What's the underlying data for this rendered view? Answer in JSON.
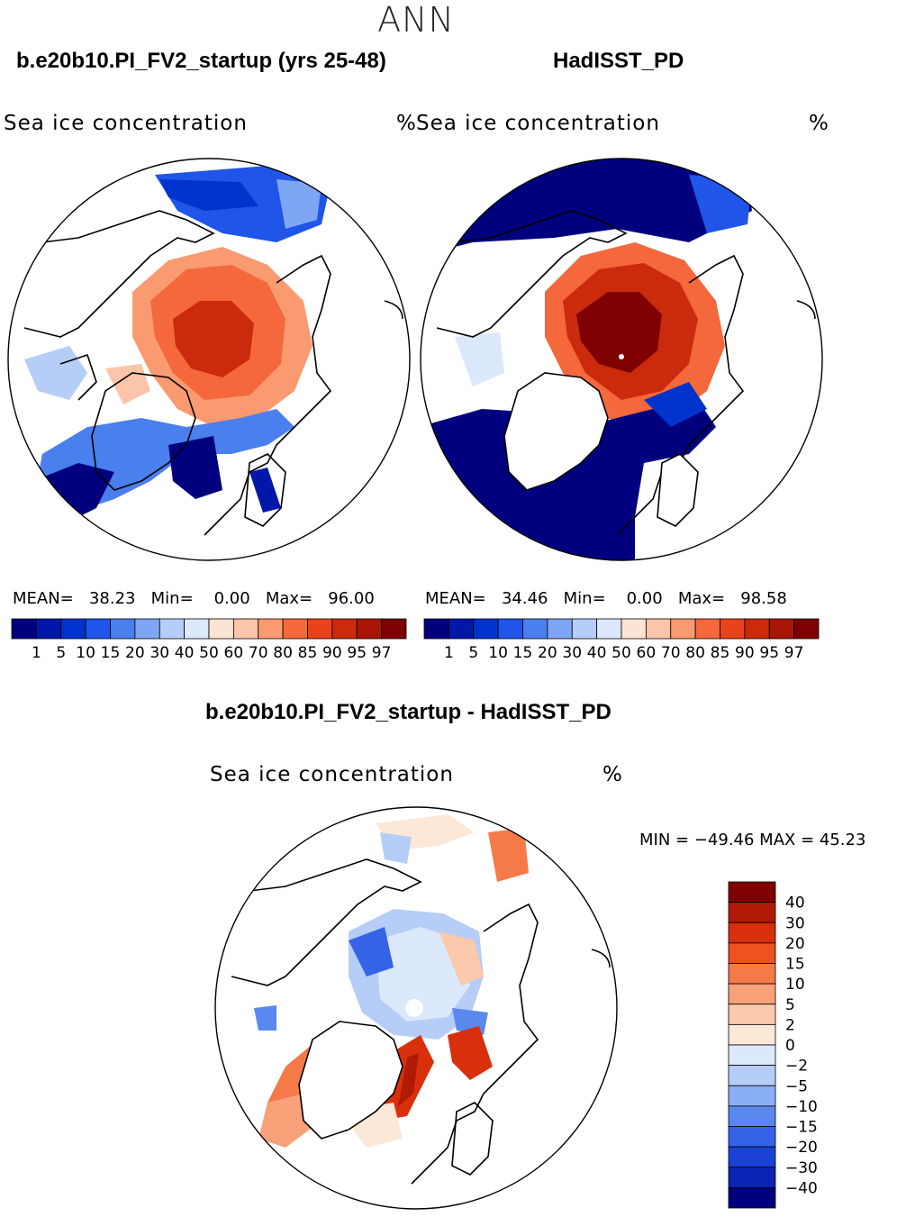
{
  "season": "ANN",
  "panels": [
    {
      "title": "b.e20b10.PI_FV2_startup (yrs 25-48)",
      "variable": "Sea ice concentration",
      "units": "%",
      "mean_label": "MEAN=",
      "mean": "38.23",
      "min_label": "Min=",
      "min": "0.00",
      "max_label": "Max=",
      "max": "96.00"
    },
    {
      "title": "HadISST_PD",
      "variable": "Sea ice concentration",
      "units": "%",
      "mean_label": "MEAN=",
      "mean": "34.46",
      "min_label": "Min=",
      "min": "0.00",
      "max_label": "Max=",
      "max": "98.58"
    }
  ],
  "diff_panel": {
    "title": "b.e20b10.PI_FV2_startup - HadISST_PD",
    "variable": "Sea ice concentration",
    "units": "%",
    "minmax": "MIN = −49.46 MAX =   45.23"
  },
  "colorbar": {
    "colors": [
      "#00007f",
      "#0018a8",
      "#0033cc",
      "#1f55e8",
      "#4a7fee",
      "#7ea6f4",
      "#b6cdf8",
      "#dce8fb",
      "#fde3d3",
      "#fcc4a8",
      "#fa9a70",
      "#f4683b",
      "#e8431c",
      "#cc2a0c",
      "#a81706",
      "#7f0000"
    ],
    "labels": [
      "1",
      "5",
      "10",
      "15",
      "20",
      "30",
      "40",
      "50",
      "60",
      "70",
      "80",
      "85",
      "90",
      "95",
      "97"
    ]
  },
  "diff_colorbar": {
    "colors": [
      "#7f0000",
      "#b01a06",
      "#d8300c",
      "#f0521f",
      "#f67a48",
      "#f9a27a",
      "#fbc9ab",
      "#fde8d8",
      "#dce8fb",
      "#b6cdf8",
      "#8aaef4",
      "#5a88ee",
      "#3463e6",
      "#1a42d6",
      "#0a24b4",
      "#00007f"
    ],
    "labels": [
      "40",
      "30",
      "20",
      "15",
      "10",
      "5",
      "2",
      "0",
      "−2",
      "−5",
      "−10",
      "−15",
      "−20",
      "−30",
      "−40"
    ]
  },
  "map_icons": [
    "coastline-outline",
    "polar-stereographic-circle"
  ]
}
